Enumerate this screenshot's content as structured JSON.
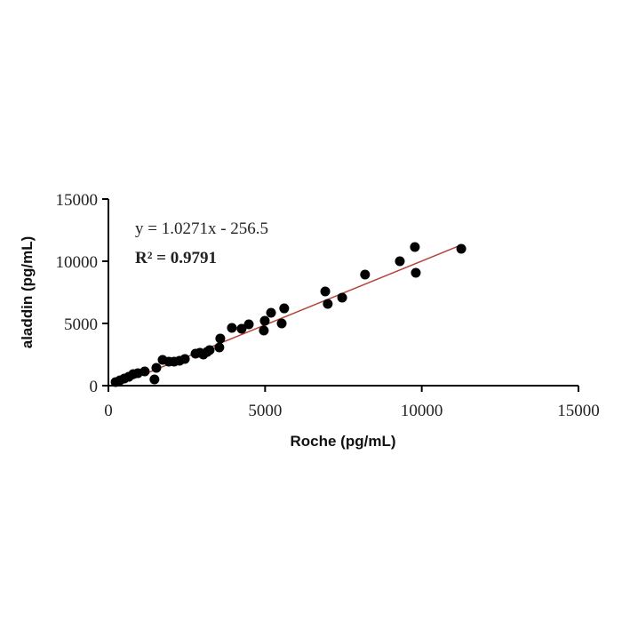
{
  "chart_data": {
    "type": "scatter",
    "x_label": "Roche (pg/mL)",
    "y_label": "aladdin (pg/mL)",
    "annotations": [
      "y = 1.0271x - 256.5",
      "R² = 0.9791"
    ],
    "trendline": {
      "slope": 1.0271,
      "intercept": -256.5,
      "color": "#b5453c"
    },
    "color": "#000000",
    "x": [
      230,
      370,
      510,
      650,
      790,
      940,
      1160,
      1470,
      1530,
      1730,
      1930,
      2100,
      2270,
      2440,
      2780,
      2920,
      3030,
      3150,
      3230,
      3540,
      3570,
      3940,
      4250,
      4480,
      4960,
      4990,
      5190,
      5530,
      5610,
      6920,
      7000,
      7460,
      8190,
      9300,
      9780,
      9810,
      11260
    ],
    "y": [
      290,
      430,
      570,
      710,
      930,
      1000,
      1140,
      500,
      1430,
      2070,
      1930,
      1930,
      2000,
      2140,
      2570,
      2640,
      2500,
      2710,
      2860,
      3070,
      3790,
      4640,
      4570,
      4930,
      4430,
      5210,
      5860,
      5000,
      6210,
      7570,
      6570,
      7070,
      8930,
      10000,
      11140,
      9070,
      11000
    ],
    "xlim": [
      0,
      15000
    ],
    "ylim": [
      0,
      15000
    ],
    "xticks": [
      0,
      5000,
      10000,
      15000
    ],
    "yticks": [
      0,
      5000,
      10000,
      15000
    ],
    "grid": false
  }
}
